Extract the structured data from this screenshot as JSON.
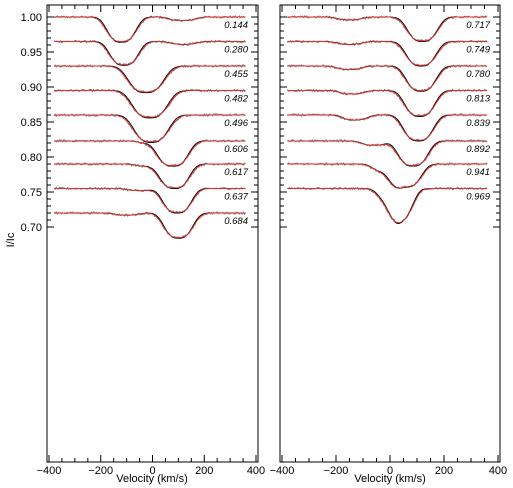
{
  "chart_data": {
    "type": "line",
    "xlabel": "Velocity (km/s)",
    "ylabel": "I/Ic",
    "xlim": [
      -400,
      400
    ],
    "ylim": [
      0.692,
      1.006
    ],
    "x_ticks": [
      -400,
      -200,
      0,
      200,
      400
    ],
    "x_tick_labels": [
      "−400",
      "−200",
      "0",
      "200",
      "400"
    ],
    "y_ticks": [
      0.7,
      0.75,
      0.8,
      0.85,
      0.9,
      0.95,
      1.0
    ],
    "y_tick_labels": [
      "0.70",
      "0.75",
      "0.80",
      "0.85",
      "0.90",
      "0.95",
      "1.00"
    ],
    "series_styles": {
      "observed": "#808080",
      "model_red": "#e8302a",
      "model_black": "#000000"
    },
    "panels": [
      {
        "profiles": [
          {
            "phase": "0.144",
            "continuum": 1.0,
            "components": [
              {
                "v": -120,
                "depth": 0.035,
                "width": 55
              },
              {
                "v": 115,
                "depth": 0.005,
                "width": 50
              }
            ]
          },
          {
            "phase": "0.280",
            "continuum": 0.965,
            "components": [
              {
                "v": -110,
                "depth": 0.033,
                "width": 55
              },
              {
                "v": 120,
                "depth": 0.004,
                "width": 50
              }
            ]
          },
          {
            "phase": "0.455",
            "continuum": 0.93,
            "components": [
              {
                "v": -25,
                "depth": 0.037,
                "width": 68
              }
            ]
          },
          {
            "phase": "0.482",
            "continuum": 0.895,
            "components": [
              {
                "v": -10,
                "depth": 0.038,
                "width": 68
              }
            ]
          },
          {
            "phase": "0.496",
            "continuum": 0.86,
            "components": [
              {
                "v": -5,
                "depth": 0.038,
                "width": 66
              }
            ]
          },
          {
            "phase": "0.606",
            "continuum": 0.823,
            "components": [
              {
                "v": -10,
                "depth": 0.003,
                "width": 45
              },
              {
                "v": 80,
                "depth": 0.035,
                "width": 58
              }
            ]
          },
          {
            "phase": "0.617",
            "continuum": 0.79,
            "components": [
              {
                "v": -20,
                "depth": 0.003,
                "width": 45
              },
              {
                "v": 85,
                "depth": 0.034,
                "width": 56
              }
            ]
          },
          {
            "phase": "0.637",
            "continuum": 0.755,
            "components": [
              {
                "v": -50,
                "depth": 0.003,
                "width": 45
              },
              {
                "v": 95,
                "depth": 0.034,
                "width": 55
              }
            ]
          },
          {
            "phase": "0.684",
            "continuum": 0.72,
            "components": [
              {
                "v": -100,
                "depth": 0.003,
                "width": 45
              },
              {
                "v": 100,
                "depth": 0.035,
                "width": 55
              }
            ]
          }
        ]
      },
      {
        "profiles": [
          {
            "phase": "0.717",
            "continuum": 1.0,
            "components": [
              {
                "v": -150,
                "depth": 0.004,
                "width": 45
              },
              {
                "v": 120,
                "depth": 0.034,
                "width": 55
              }
            ]
          },
          {
            "phase": "0.749",
            "continuum": 0.965,
            "components": [
              {
                "v": -150,
                "depth": 0.004,
                "width": 45
              },
              {
                "v": 115,
                "depth": 0.034,
                "width": 55
              }
            ]
          },
          {
            "phase": "0.780",
            "continuum": 0.93,
            "components": [
              {
                "v": -150,
                "depth": 0.005,
                "width": 45
              },
              {
                "v": 115,
                "depth": 0.035,
                "width": 55
              }
            ]
          },
          {
            "phase": "0.813",
            "continuum": 0.895,
            "components": [
              {
                "v": -140,
                "depth": 0.005,
                "width": 45
              },
              {
                "v": 110,
                "depth": 0.036,
                "width": 55
              }
            ]
          },
          {
            "phase": "0.839",
            "continuum": 0.86,
            "components": [
              {
                "v": -130,
                "depth": 0.007,
                "width": 45
              },
              {
                "v": 105,
                "depth": 0.036,
                "width": 55
              }
            ]
          },
          {
            "phase": "0.892",
            "continuum": 0.823,
            "components": [
              {
                "v": -60,
                "depth": 0.006,
                "width": 45
              },
              {
                "v": 85,
                "depth": 0.035,
                "width": 55
              }
            ]
          },
          {
            "phase": "0.941",
            "continuum": 0.79,
            "components": [
              {
                "v": -20,
                "depth": 0.01,
                "width": 45
              },
              {
                "v": 60,
                "depth": 0.032,
                "width": 55
              }
            ]
          },
          {
            "phase": "0.969",
            "continuum": 0.755,
            "components": [
              {
                "v": 10,
                "depth": 0.02,
                "width": 50
              },
              {
                "v": 45,
                "depth": 0.03,
                "width": 45
              }
            ]
          }
        ]
      }
    ]
  }
}
